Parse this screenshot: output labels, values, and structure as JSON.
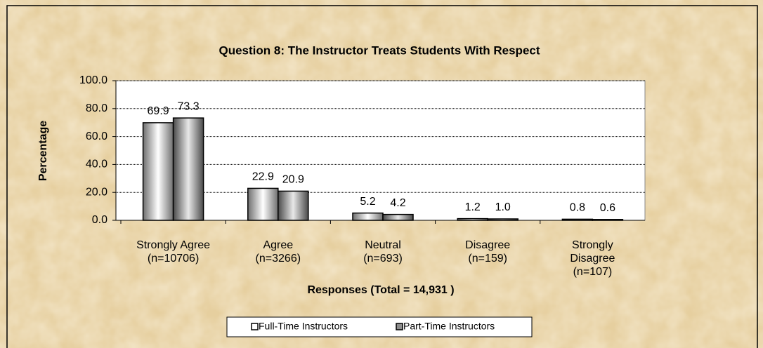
{
  "chart_data": {
    "type": "bar",
    "title": "Question 8:  The Instructor Treats Students With Respect",
    "x_label": "Responses (Total = 14,931 )",
    "y_label": "Percentage",
    "categories": [
      "Strongly Agree\n(n=10706)",
      "Agree\n(n=3266)",
      "Neutral\n(n=693)",
      "Disagree\n(n=159)",
      "Strongly\nDisagree\n(n=107)"
    ],
    "series": [
      {
        "name": "Full-Time Instructors",
        "color": "#ffffff",
        "values": [
          69.9,
          22.9,
          5.2,
          1.2,
          0.8
        ],
        "value_labels": [
          "69.9",
          "22.9",
          "5.2",
          "1.2",
          "0.8"
        ]
      },
      {
        "name": "Part-Time Instructors",
        "color": "#8c8c8c",
        "values": [
          73.3,
          20.9,
          4.2,
          1.0,
          0.6
        ],
        "value_labels": [
          "73.3",
          "20.9",
          "4.2",
          "1.0",
          "0.6"
        ]
      }
    ],
    "ylim": [
      0,
      100
    ],
    "yticks": [
      {
        "value": 0,
        "label": "0.0"
      },
      {
        "value": 20,
        "label": "20.0"
      },
      {
        "value": 40,
        "label": "40.0"
      },
      {
        "value": 60,
        "label": "60.0"
      },
      {
        "value": 80,
        "label": "80.0"
      },
      {
        "value": 100,
        "label": "100.0"
      }
    ],
    "grid": true,
    "legend": "bottom"
  }
}
